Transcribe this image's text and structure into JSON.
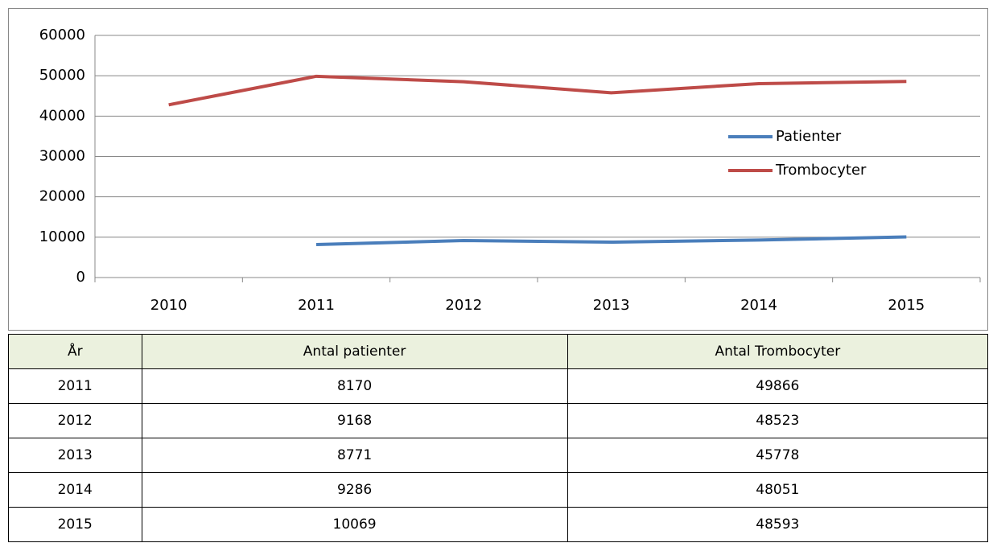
{
  "chart_data": {
    "type": "line",
    "categories": [
      "2010",
      "2011",
      "2012",
      "2013",
      "2014",
      "2015"
    ],
    "series": [
      {
        "name": "Patienter",
        "color": "#4a7ebb",
        "values": [
          null,
          8170,
          9168,
          8771,
          9286,
          10069
        ]
      },
      {
        "name": "Trombocyter",
        "color": "#be4b48",
        "values": [
          42800,
          49866,
          48523,
          45778,
          48051,
          48593
        ]
      }
    ],
    "ylim": [
      0,
      60000
    ],
    "yticks": [
      0,
      10000,
      20000,
      30000,
      40000,
      50000,
      60000
    ],
    "grid": true,
    "legend": "right"
  },
  "table": {
    "header": [
      "År",
      "Antal patienter",
      "Antal Trombocyter"
    ],
    "rows": [
      [
        "2011",
        8170,
        49866
      ],
      [
        "2012",
        9168,
        48523
      ],
      [
        "2013",
        8771,
        45778
      ],
      [
        "2014",
        9286,
        48051
      ],
      [
        "2015",
        10069,
        48593
      ]
    ]
  }
}
